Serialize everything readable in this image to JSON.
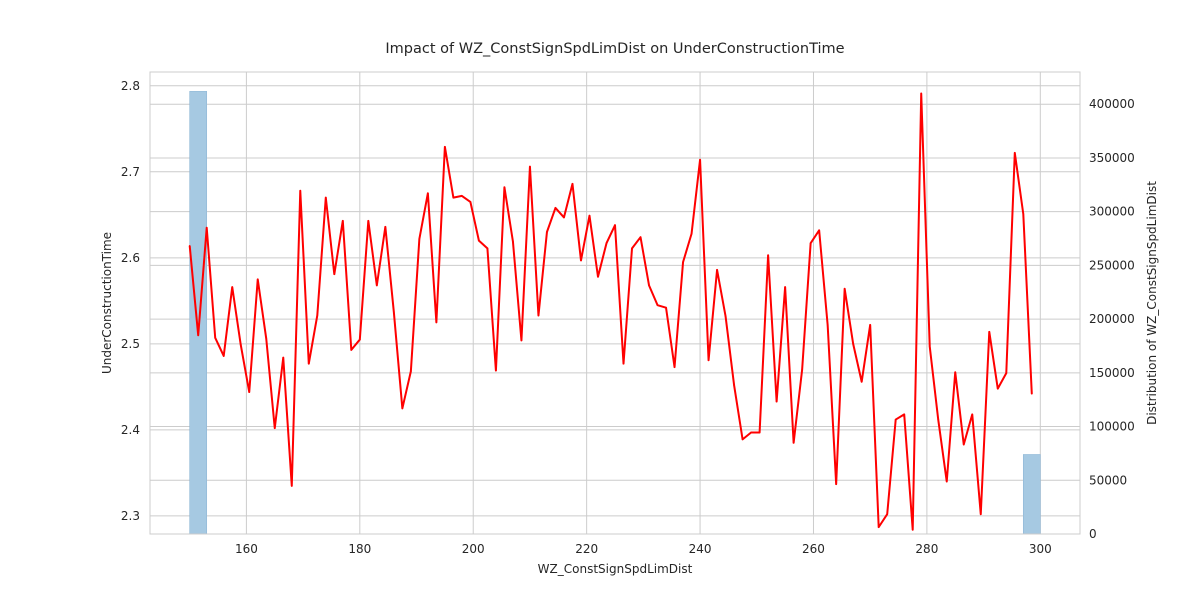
{
  "chart_data": {
    "type": "line",
    "title": "Impact of WZ_ConstSignSpdLimDist on UnderConstructionTime",
    "xlabel": "WZ_ConstSignSpdLimDist",
    "ylabel": "UnderConstructionTime",
    "y2label": "Distribution of WZ_ConstSignSpdLimDist",
    "xlim": [
      143,
      307
    ],
    "ylim": [
      2.279,
      2.816
    ],
    "y2lim": [
      0,
      430000
    ],
    "xticks": [
      160,
      180,
      200,
      220,
      240,
      260,
      280,
      300
    ],
    "yticks": [
      2.3,
      2.4,
      2.5,
      2.6,
      2.7,
      2.8
    ],
    "y2ticks": [
      0,
      50000,
      100000,
      150000,
      200000,
      250000,
      300000,
      350000,
      400000
    ],
    "grid": true,
    "line_color": "#ff0000",
    "bar_color": "#a6c9e2",
    "series": [
      {
        "x": [
          150,
          151.5,
          153,
          154.5,
          156,
          157.5,
          159,
          160.5,
          162,
          163.5,
          165,
          166.5,
          168,
          169.5,
          171,
          172.5,
          174,
          175.5,
          177,
          178.5,
          180,
          181.5,
          183,
          184.5,
          186,
          187.5,
          189,
          190.5,
          192,
          193.5,
          195,
          196.5,
          198,
          199.5,
          201,
          202.5,
          204,
          205.5,
          207,
          208.5,
          210,
          211.5,
          213,
          214.5,
          216,
          217.5,
          219,
          220.5,
          222,
          223.5,
          225,
          226.5,
          228,
          229.5,
          231,
          232.5,
          234,
          235.5,
          237,
          238.5,
          240,
          241.5,
          243,
          244.5,
          246,
          247.5,
          249,
          250.5,
          252,
          253.5,
          255,
          256.5,
          258,
          259.5,
          261,
          262.5,
          264,
          265.5,
          267,
          268.5,
          270,
          271.5,
          273,
          274.5,
          276,
          277.5,
          279,
          280.5,
          282,
          283.5,
          285,
          286.5,
          288,
          289.5,
          291,
          292.5,
          294,
          295.5,
          297,
          298.5
        ],
        "values": [
          2.614,
          2.51,
          2.635,
          2.507,
          2.486,
          2.566,
          2.499,
          2.444,
          2.575,
          2.506,
          2.402,
          2.484,
          2.335,
          2.678,
          2.477,
          2.533,
          2.67,
          2.581,
          2.643,
          2.493,
          2.505,
          2.643,
          2.568,
          2.636,
          2.537,
          2.425,
          2.468,
          2.622,
          2.675,
          2.525,
          2.729,
          2.67,
          2.672,
          2.665,
          2.62,
          2.611,
          2.469,
          2.682,
          2.619,
          2.504,
          2.706,
          2.533,
          2.63,
          2.658,
          2.647,
          2.686,
          2.597,
          2.649,
          2.578,
          2.617,
          2.638,
          2.477,
          2.611,
          2.624,
          2.568,
          2.545,
          2.542,
          2.473,
          2.595,
          2.628,
          2.714,
          2.481,
          2.586,
          2.532,
          2.452,
          2.389,
          2.397,
          2.397,
          2.603,
          2.433,
          2.566,
          2.385,
          2.47,
          2.617,
          2.632,
          2.522,
          2.337,
          2.564,
          2.5,
          2.456,
          2.522,
          2.287,
          2.302,
          2.412,
          2.418,
          2.284,
          2.791,
          2.497,
          2.412,
          2.34,
          2.467,
          2.383,
          2.418,
          2.302,
          2.514,
          2.448,
          2.466,
          2.722,
          2.651,
          2.442
        ]
      }
    ],
    "histogram": [
      {
        "x_start": 150,
        "x_end": 153,
        "count": 412000
      },
      {
        "x_start": 297,
        "x_end": 300,
        "count": 74000
      }
    ]
  }
}
